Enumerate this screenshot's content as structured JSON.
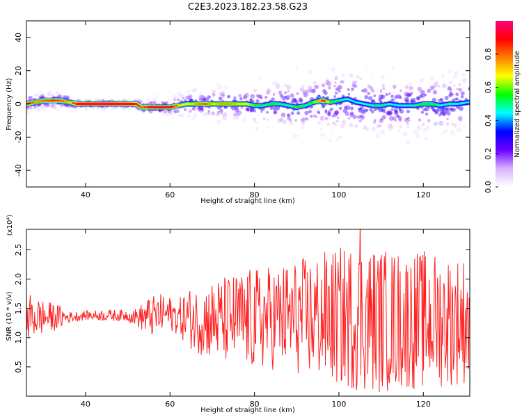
{
  "figure": {
    "title": "C2E3.2023.182.23.58.G23"
  },
  "chart_data": [
    {
      "type": "heatmap",
      "xlabel": "Height of straight line (km)",
      "ylabel": "Frequency (Hz)",
      "xlim": [
        26,
        131
      ],
      "ylim": [
        -50,
        50
      ],
      "xticks": [
        40,
        60,
        80,
        100,
        120
      ],
      "yticks": [
        -40,
        -20,
        0,
        20,
        40
      ],
      "colorbar": {
        "label": "Normalized spectral amplitude",
        "range": [
          0,
          1
        ],
        "ticks": [
          "0.0",
          "0.2",
          "0.4",
          "0.6",
          "0.8"
        ],
        "colormap": [
          "#ffffff",
          "#d8b4fe",
          "#6a00ff",
          "#0000ff",
          "#00ffff",
          "#00ff00",
          "#ffff00",
          "#ff8000",
          "#ff0000",
          "#ff0080"
        ]
      },
      "ridge": {
        "x": [
          26,
          28,
          30,
          32,
          34,
          36,
          38,
          40,
          45,
          50,
          52,
          53,
          55,
          58,
          60,
          62,
          64,
          66,
          68,
          70,
          72,
          74,
          76,
          78,
          80,
          82,
          84,
          86,
          88,
          90,
          92,
          94,
          96,
          98,
          100,
          102,
          104,
          106,
          108,
          110,
          112,
          114,
          116,
          118,
          120,
          122,
          124,
          126,
          128,
          131
        ],
        "y": [
          0,
          1,
          2,
          2,
          2,
          1,
          0,
          0,
          0,
          0,
          0,
          -2,
          -2,
          -2,
          -2,
          -1,
          0,
          0,
          0,
          0,
          0,
          0,
          0,
          0,
          -1,
          -1,
          0,
          0,
          -1,
          -2,
          -1,
          1,
          2,
          1,
          2,
          3,
          1,
          0,
          -1,
          -1,
          0,
          -1,
          -1,
          -1,
          0,
          0,
          -1,
          0,
          0,
          1
        ],
        "level": [
          0.85,
          0.75,
          0.8,
          0.85,
          0.8,
          0.7,
          0.95,
          1.0,
          1.0,
          0.95,
          0.85,
          0.8,
          0.9,
          0.95,
          0.9,
          0.7,
          0.65,
          0.75,
          0.8,
          0.7,
          0.75,
          0.75,
          0.7,
          0.65,
          0.55,
          0.5,
          0.55,
          0.5,
          0.5,
          0.55,
          0.5,
          0.6,
          0.85,
          0.55,
          0.5,
          0.45,
          0.45,
          0.45,
          0.5,
          0.5,
          0.45,
          0.45,
          0.45,
          0.5,
          0.55,
          0.55,
          0.45,
          0.5,
          0.45,
          0.45
        ],
        "spread_hz": [
          2,
          2,
          2,
          2,
          2,
          2,
          1,
          1,
          1,
          1,
          1,
          2,
          2,
          2,
          2,
          3,
          3,
          3,
          3,
          4,
          4,
          4,
          4,
          4,
          5,
          5,
          5,
          6,
          6,
          6,
          6,
          6,
          7,
          8,
          8,
          8,
          8,
          8,
          7,
          7,
          7,
          7,
          7,
          7,
          7,
          7,
          7,
          7,
          7,
          7
        ]
      }
    },
    {
      "type": "line",
      "xlabel": "Height of straight line (km)",
      "ylabel": "SNR (10 * v/v)",
      "multiplier": "(x10⁴)",
      "xlim": [
        26,
        131
      ],
      "ylim": [
        0,
        2.85
      ],
      "xticks": [
        40,
        60,
        80,
        100,
        120
      ],
      "yticks": [
        "0.5",
        "1.0",
        "1.5",
        "2.0",
        "2.5"
      ],
      "color": "#ff2020",
      "envelope": {
        "x": [
          26,
          28,
          30,
          32,
          34,
          36,
          40,
          45,
          50,
          52,
          55,
          58,
          60,
          62,
          64,
          66,
          70,
          75,
          80,
          85,
          90,
          95,
          100,
          105,
          110,
          115,
          120,
          125,
          130
        ],
        "mean": [
          1.35,
          1.35,
          1.35,
          1.35,
          1.35,
          1.35,
          1.38,
          1.38,
          1.38,
          1.35,
          1.35,
          1.4,
          1.4,
          1.35,
          1.35,
          1.3,
          1.3,
          1.3,
          1.3,
          1.35,
          1.35,
          1.35,
          1.35,
          1.35,
          1.3,
          1.3,
          1.3,
          1.3,
          1.3
        ],
        "amplitude": [
          0.45,
          0.35,
          0.3,
          0.25,
          0.2,
          0.1,
          0.08,
          0.1,
          0.1,
          0.15,
          0.35,
          0.35,
          0.3,
          0.3,
          0.5,
          0.55,
          0.7,
          0.8,
          0.9,
          0.9,
          1.0,
          1.1,
          1.2,
          1.3,
          1.25,
          1.2,
          1.2,
          1.15,
          1.1
        ]
      },
      "peak": {
        "x": 105,
        "y": 2.85
      }
    }
  ]
}
